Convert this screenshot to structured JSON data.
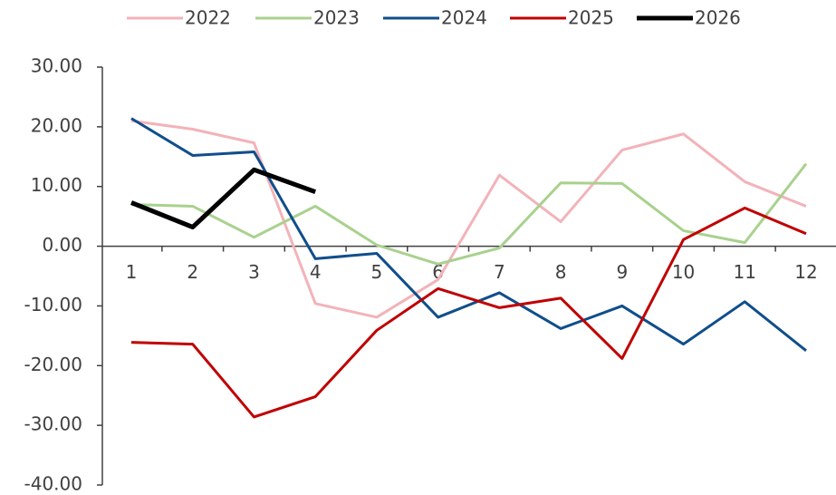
{
  "chart_data": {
    "type": "line",
    "categories": [
      "1",
      "2",
      "3",
      "4",
      "5",
      "6",
      "7",
      "8",
      "9",
      "10",
      "11",
      "12"
    ],
    "series": [
      {
        "name": "2022",
        "color": "#f2b3b9",
        "values": [
          21.0,
          19.6,
          17.3,
          -9.6,
          -11.9,
          -5.6,
          11.9,
          4.1,
          16.1,
          18.8,
          10.8,
          6.7
        ]
      },
      {
        "name": "2023",
        "color": "#a9d18e",
        "values": [
          7.0,
          6.7,
          1.5,
          6.7,
          0.2,
          -3.0,
          -0.3,
          10.6,
          10.5,
          2.6,
          0.6,
          13.8
        ]
      },
      {
        "name": "2024",
        "color": "#104e8b",
        "values": [
          21.4,
          15.2,
          15.8,
          -2.1,
          -1.2,
          -11.9,
          -7.8,
          -13.8,
          -10.0,
          -16.4,
          -9.3,
          -17.5
        ]
      },
      {
        "name": "2025",
        "color": "#c00000",
        "values": [
          -16.1,
          -16.4,
          -28.6,
          -25.2,
          -14.1,
          -7.1,
          -10.3,
          -8.7,
          -18.8,
          1.1,
          6.4,
          2.1
        ]
      },
      {
        "name": "2026",
        "color": "#000000",
        "values": [
          7.3,
          3.2,
          12.8,
          9.1,
          null,
          null,
          null,
          null,
          null,
          null,
          null,
          null
        ]
      }
    ],
    "ylim": [
      -40,
      30
    ],
    "yticks": [
      {
        "value": 30,
        "label": "30.00"
      },
      {
        "value": 20,
        "label": "20.00"
      },
      {
        "value": 10,
        "label": "10.00"
      },
      {
        "value": 0,
        "label": "0.00"
      },
      {
        "value": -10,
        "label": "-10.00"
      },
      {
        "value": -20,
        "label": "-20.00"
      },
      {
        "value": -30,
        "label": "-30.00"
      },
      {
        "value": -40,
        "label": "-40.00"
      }
    ],
    "legend": "top"
  }
}
